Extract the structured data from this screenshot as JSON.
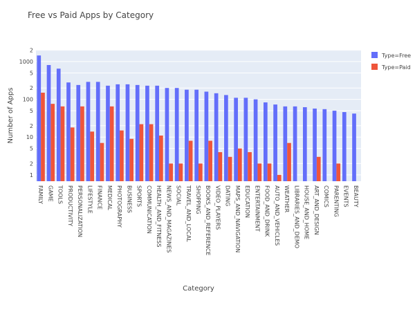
{
  "chart_data": {
    "type": "bar",
    "title": "Free vs Paid Apps by Category",
    "x_label": "Category",
    "y_label": "Number of Apps",
    "categories": [
      "FAMILY",
      "GAME",
      "TOOLS",
      "PRODUCTIVITY",
      "PERSONALIZATION",
      "LIFESTYLE",
      "FINANCE",
      "MEDICAL",
      "PHOTOGRAPHY",
      "BUSINESS",
      "SPORTS",
      "COMMUNICATION",
      "HEALTH_AND_FITNESS",
      "NEWS_AND_MAGAZINES",
      "SOCIAL",
      "TRAVEL_AND_LOCAL",
      "SHOPPING",
      "BOOKS_AND_REFERENCE",
      "VIDEO_PLAYERS",
      "DATING",
      "MAPS_AND_NAVIGATION",
      "EDUCATION",
      "ENTERTAINMENT",
      "FOOD_AND_DRINK",
      "AUTO_AND_VEHICLES",
      "WEATHER",
      "LIBRARIES_AND_DEMO",
      "HOUSE_AND_HOME",
      "ART_AND_DESIGN",
      "COMICS",
      "PARENTING",
      "EVENTS",
      "BEAUTY"
    ],
    "series": [
      {
        "name": "Type=Free",
        "color": "#636efa",
        "values": [
          1450,
          810,
          650,
          280,
          240,
          290,
          290,
          230,
          250,
          250,
          240,
          230,
          230,
          200,
          200,
          180,
          180,
          160,
          145,
          130,
          110,
          110,
          100,
          83,
          73,
          65,
          65,
          62,
          57,
          55,
          50,
          46,
          42
        ]
      },
      {
        "name": "Type=Paid",
        "color": "#ef553b",
        "values": [
          150,
          76,
          65,
          18,
          65,
          14,
          7,
          65,
          15,
          9,
          22,
          22,
          11,
          2,
          2,
          8,
          2,
          8,
          4,
          3,
          5,
          4,
          2,
          2,
          1,
          7,
          null,
          null,
          3,
          null,
          2,
          null,
          null
        ]
      }
    ],
    "log_y": true,
    "ylim": [
      0.68,
      2050
    ],
    "yticks": [
      1,
      2,
      5,
      10,
      {
        "value": 20,
        "label": "2"
      },
      {
        "value": 50,
        "label": "5"
      },
      100,
      {
        "value": 200,
        "label": "2"
      },
      {
        "value": 500,
        "label": "5"
      },
      1000,
      {
        "value": 2000,
        "label": "2"
      }
    ],
    "grid": true,
    "legend": "right"
  }
}
